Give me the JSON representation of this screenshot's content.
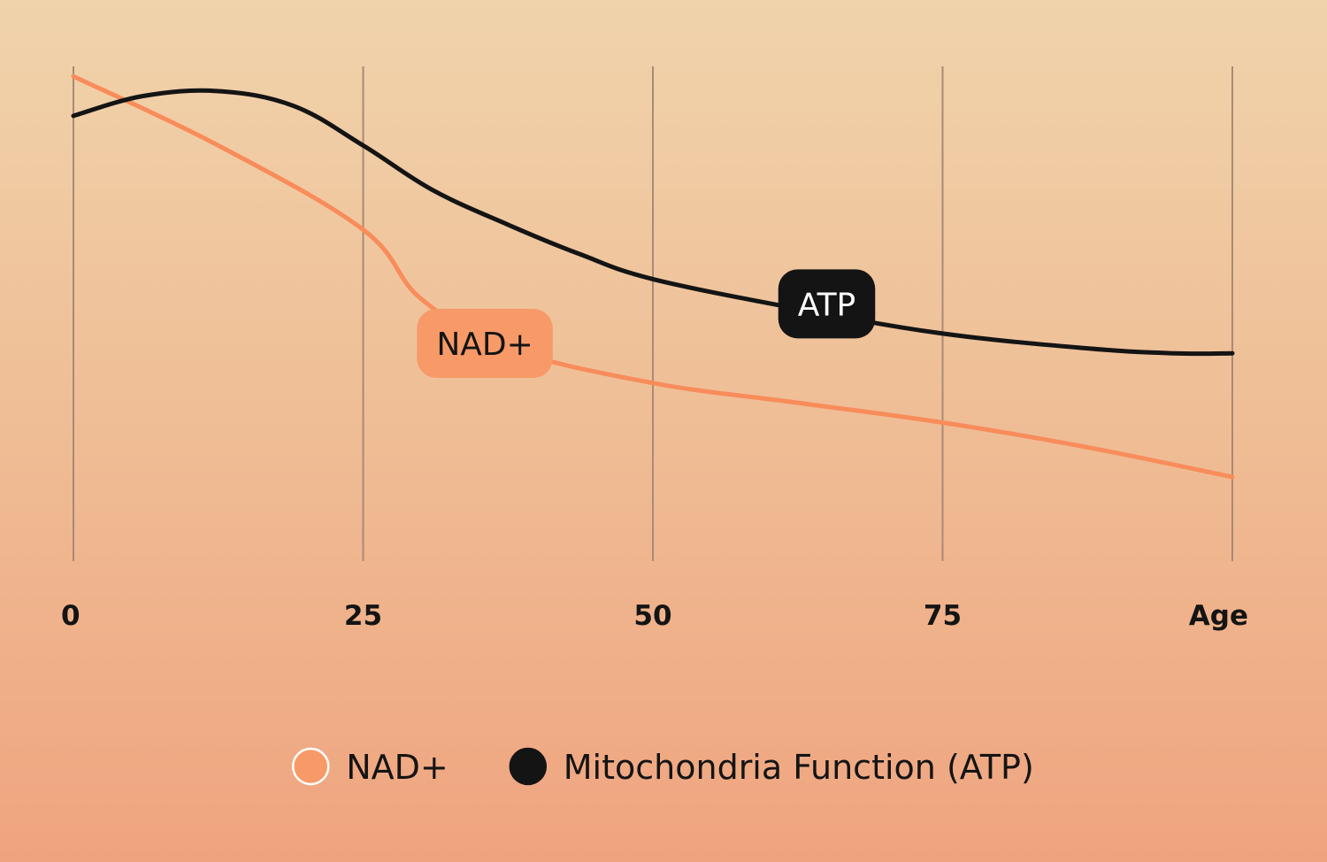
{
  "chart_data": {
    "type": "line",
    "x_tick_labels": [
      "0",
      "25",
      "50",
      "75",
      "Age"
    ],
    "x_ticks": [
      0,
      25,
      50,
      75,
      100
    ],
    "xlim": [
      0,
      100
    ],
    "ylim": [
      0,
      100
    ],
    "y_axis_labels": false,
    "grid": "vertical",
    "series": [
      {
        "name": "NAD+",
        "color": "#f88c5a",
        "marker_fill": "#f79a68",
        "x": [
          0,
          12.5,
          25,
          30,
          37.5,
          50,
          62.5,
          75,
          87.5,
          100
        ],
        "values": [
          98,
          84,
          67,
          53,
          43,
          36,
          32,
          28,
          23,
          17
        ]
      },
      {
        "name": "Mitochondria Function (ATP)",
        "color": "#141414",
        "marker_fill": "#141414",
        "x": [
          0,
          6,
          12.5,
          19,
          25,
          31,
          37.5,
          43.75,
          50,
          62.5,
          75,
          87.5,
          95,
          100
        ],
        "values": [
          90,
          94,
          95,
          92,
          84,
          75,
          68,
          62,
          57,
          51,
          46,
          43,
          42,
          42
        ]
      }
    ],
    "callouts": [
      {
        "text": "NAD+",
        "series": "NAD+",
        "x": 35.5,
        "y": 44,
        "bg": "#f79a68",
        "fg": "#141414"
      },
      {
        "text": "ATP",
        "series": "Mitochondria Function (ATP)",
        "x": 65,
        "y": 52,
        "bg": "#141414",
        "fg": "#ffffff"
      }
    ],
    "legend": {
      "position": "bottom-center",
      "items": [
        {
          "label": "NAD+",
          "fill": "#f79a68",
          "stroke": "#ffffff"
        },
        {
          "label": "Mitochondria Function (ATP)",
          "fill": "#141414",
          "stroke": "#141414"
        }
      ]
    }
  }
}
